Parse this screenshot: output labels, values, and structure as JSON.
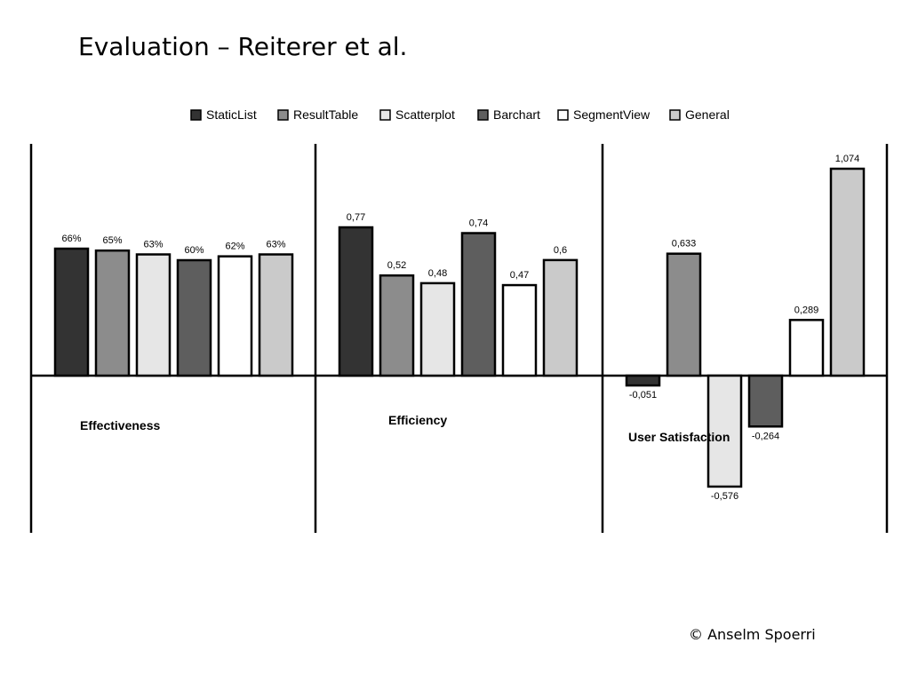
{
  "slide": {
    "title": "Evaluation – Reiterer et al.",
    "copyright": "© Anselm Spoerri"
  },
  "chart_data": {
    "type": "bar",
    "categories": [
      "Effectiveness",
      "Efficiency",
      "User Satisfaction"
    ],
    "legend_position": "top",
    "grid": false,
    "colors": {
      "StaticList": "#333333",
      "ResultTable": "#8c8c8c",
      "Scatterplot": "#e6e6e6",
      "Barchart": "#5e5e5e",
      "SegmentView": "#ffffff",
      "General": "#cacaca"
    },
    "series": [
      {
        "name": "StaticList",
        "values": [
          0.66,
          0.77,
          -0.051
        ],
        "labels": [
          "66%",
          "0,77",
          "-0,051"
        ]
      },
      {
        "name": "ResultTable",
        "values": [
          0.65,
          0.52,
          0.633
        ],
        "labels": [
          "65%",
          "0,52",
          "0,633"
        ]
      },
      {
        "name": "Scatterplot",
        "values": [
          0.63,
          0.48,
          -0.576
        ],
        "labels": [
          "63%",
          "0,48",
          "-0,576"
        ]
      },
      {
        "name": "Barchart",
        "values": [
          0.6,
          0.74,
          -0.264
        ],
        "labels": [
          "60%",
          "0,74",
          "-0,264"
        ]
      },
      {
        "name": "SegmentView",
        "values": [
          0.62,
          0.47,
          0.289
        ],
        "labels": [
          "62%",
          "0,47",
          "0,289"
        ]
      },
      {
        "name": "General",
        "values": [
          0.63,
          0.6,
          1.074
        ],
        "labels": [
          "63%",
          "0,6",
          "1,074"
        ]
      }
    ]
  }
}
